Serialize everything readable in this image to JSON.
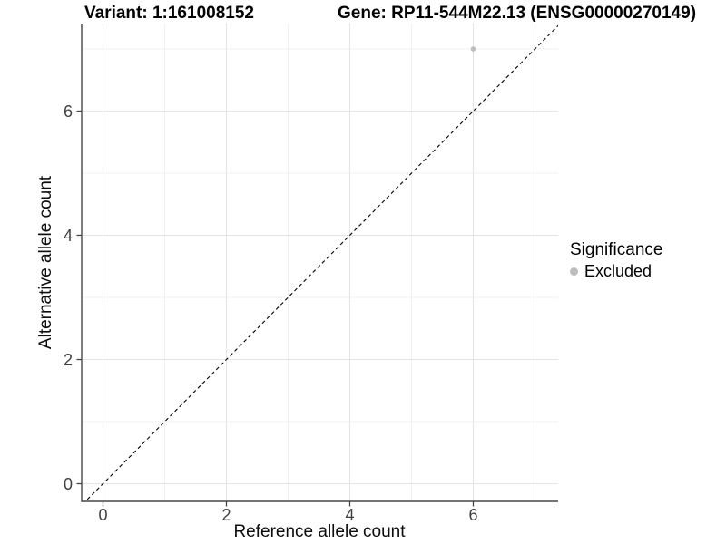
{
  "header": {
    "variant_title": "Variant: 1:161008152",
    "gene_title": "Gene: RP11-544M22.13 (ENSG00000270149)"
  },
  "legend": {
    "title": "Significance",
    "position": "right",
    "entries": [
      {
        "label": "Excluded",
        "color": "#bdbdbd",
        "marker": "circle"
      }
    ]
  },
  "chart_data": {
    "type": "scatter",
    "titles": [
      "Variant: 1:161008152",
      "Gene: RP11-544M22.13 (ENSG00000270149)"
    ],
    "xlabel": "Reference allele count",
    "ylabel": "Alternative allele count",
    "xlim": [
      -0.35,
      7.4
    ],
    "ylim": [
      -0.3,
      7.4
    ],
    "xticks": [
      0,
      2,
      4,
      6
    ],
    "yticks": [
      0,
      2,
      4,
      6
    ],
    "xticks_minor": [
      1,
      3,
      5,
      7
    ],
    "yticks_minor": [
      1,
      3,
      5,
      7
    ],
    "grid": "major+minor",
    "series": [
      {
        "name": "Excluded",
        "color": "#bdbdbd",
        "points": [
          {
            "x": 6,
            "y": 7
          }
        ]
      }
    ],
    "reference_line": {
      "type": "identity",
      "equation": "y = x",
      "style": "dashed",
      "color": "#000000"
    },
    "legend_title": "Significance",
    "styles": {
      "background": "#ffffff",
      "grid_major": "#e4e4e4",
      "grid_minor": "#f1f1f1",
      "axis_line": "#474747",
      "tick": "#474747",
      "tick_label": "#404040",
      "axis_title": "#0d0d0d",
      "point": "#bdbdbd"
    }
  }
}
